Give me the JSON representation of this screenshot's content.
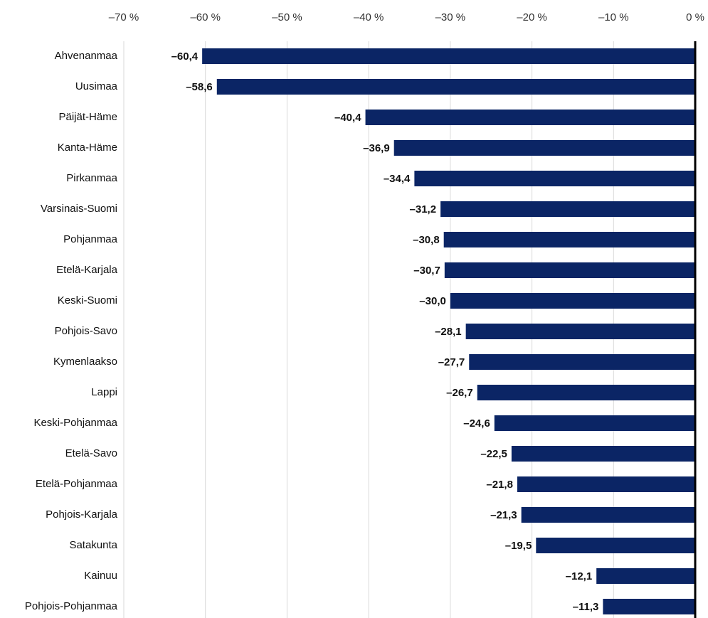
{
  "chart_data": {
    "type": "bar",
    "orientation": "horizontal",
    "categories": [
      "Ahvenanmaa",
      "Uusimaa",
      "Päijät-Häme",
      "Kanta-Häme",
      "Pirkanmaa",
      "Varsinais-Suomi",
      "Pohjanmaa",
      "Etelä-Karjala",
      "Keski-Suomi",
      "Pohjois-Savo",
      "Kymenlaakso",
      "Lappi",
      "Keski-Pohjanmaa",
      "Etelä-Savo",
      "Etelä-Pohjanmaa",
      "Pohjois-Karjala",
      "Satakunta",
      "Kainuu",
      "Pohjois-Pohjanmaa"
    ],
    "values": [
      -60.4,
      -58.6,
      -40.4,
      -36.9,
      -34.4,
      -31.2,
      -30.8,
      -30.7,
      -30.0,
      -28.1,
      -27.7,
      -26.7,
      -24.6,
      -22.5,
      -21.8,
      -21.3,
      -19.5,
      -12.1,
      -11.3
    ],
    "value_labels": [
      "–60,4",
      "–58,6",
      "–40,4",
      "–36,9",
      "–34,4",
      "–31,2",
      "–30,8",
      "–30,7",
      "–30,0",
      "–28,1",
      "–27,7",
      "–26,7",
      "–24,6",
      "–22,5",
      "–21,8",
      "–21,3",
      "–19,5",
      "–12,1",
      "–11,3"
    ],
    "color": "#0b2565",
    "xlim": [
      -70,
      0
    ],
    "xticks": [
      {
        "value": -70,
        "label": "–70 %"
      },
      {
        "value": -60,
        "label": "–60 %"
      },
      {
        "value": -50,
        "label": "–50 %"
      },
      {
        "value": -40,
        "label": "–40 %"
      },
      {
        "value": -30,
        "label": "–30 %"
      },
      {
        "value": -20,
        "label": "–20 %"
      },
      {
        "value": -10,
        "label": "–10 %"
      },
      {
        "value": 0,
        "label": "0 %"
      }
    ],
    "grid": true
  }
}
